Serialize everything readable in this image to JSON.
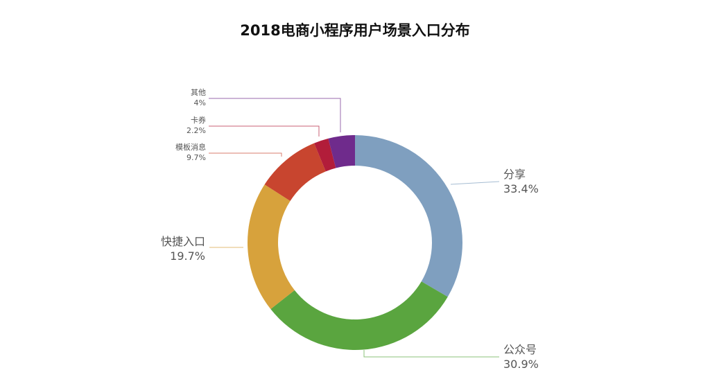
{
  "chart_data": {
    "type": "pie",
    "title": "2018电商小程序用户场景入口分布",
    "slices": [
      {
        "label": "分享",
        "percent_text": "33.4%",
        "value": 33.4,
        "color": "#7f9fbf"
      },
      {
        "label": "公众号",
        "percent_text": "30.9%",
        "value": 30.9,
        "color": "#5aa53f"
      },
      {
        "label": "快捷入口",
        "percent_text": "19.7%",
        "value": 19.7,
        "color": "#d7a23c"
      },
      {
        "label": "模板消息",
        "percent_text": "9.7%",
        "value": 9.7,
        "color": "#c8452f"
      },
      {
        "label": "卡券",
        "percent_text": "2.2%",
        "value": 2.2,
        "color": "#b21d3a"
      },
      {
        "label": "其他",
        "percent_text": "4%",
        "value": 4.0,
        "color": "#6f2b8c"
      }
    ]
  }
}
